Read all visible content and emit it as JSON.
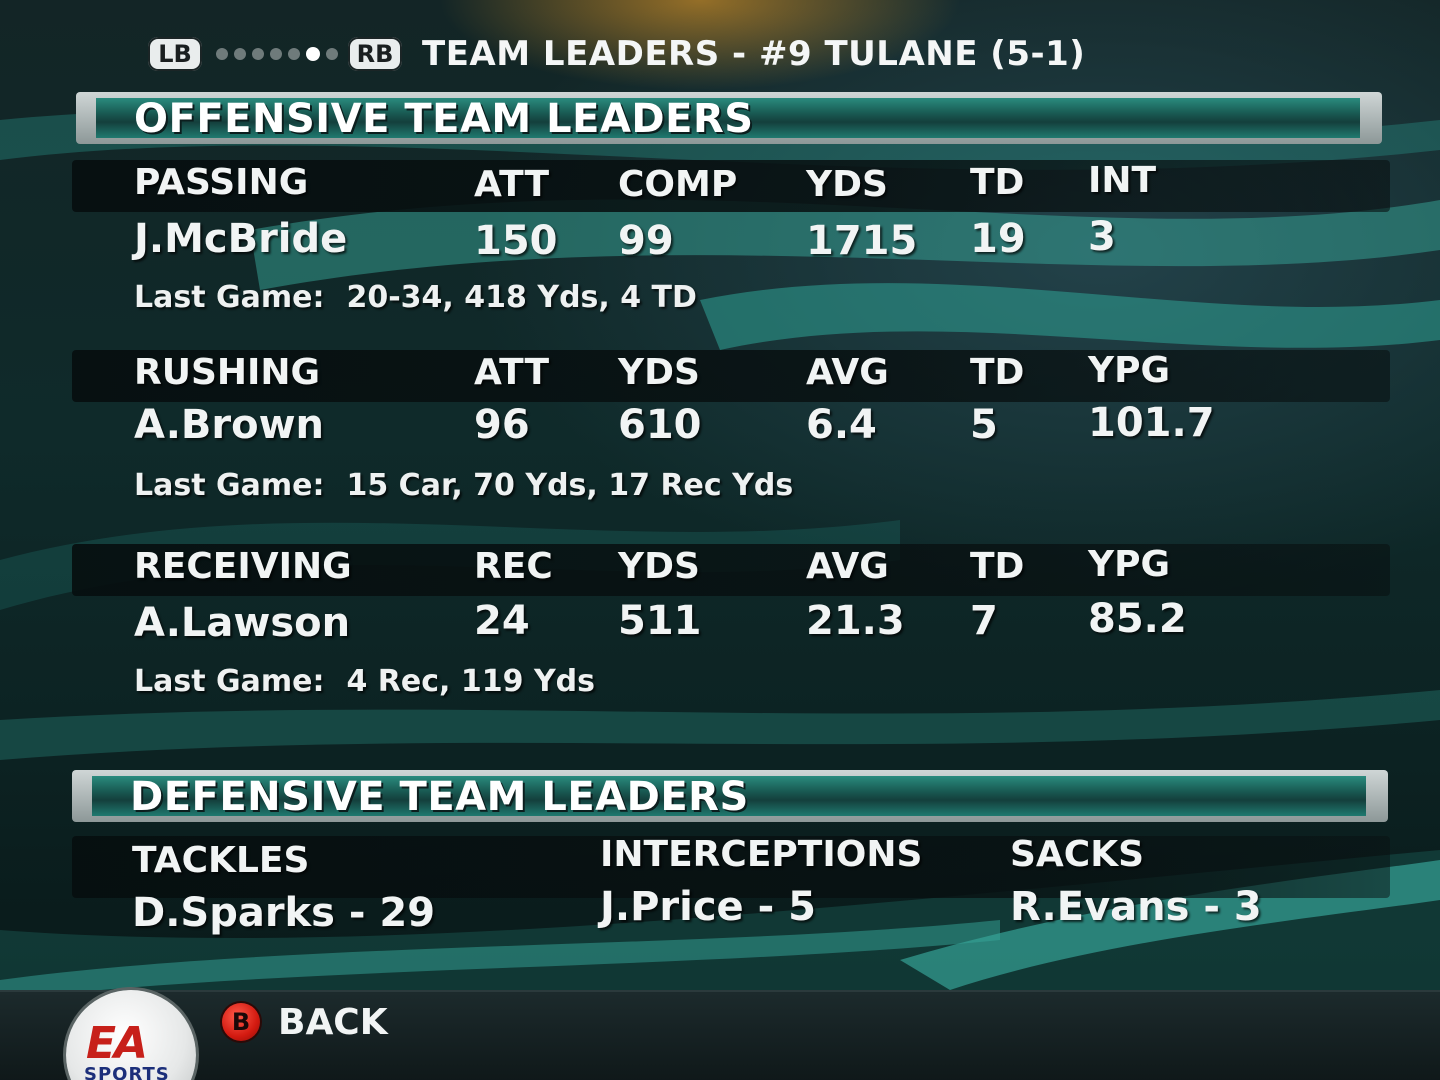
{
  "header": {
    "lb_label": "LB",
    "rb_label": "RB",
    "title": "TEAM LEADERS - #9 TULANE (5-1)",
    "page_dots_total": 7,
    "page_dot_active_index": 5
  },
  "offense": {
    "section_title": "OFFENSIVE TEAM LEADERS",
    "passing": {
      "category": "PASSING",
      "columns": [
        "ATT",
        "COMP",
        "YDS",
        "TD",
        "INT"
      ],
      "player": "J.McBride",
      "values": [
        "150",
        "99",
        "1715",
        "19",
        "3"
      ],
      "last_game_label": "Last Game:",
      "last_game": "20-34, 418 Yds, 4 TD"
    },
    "rushing": {
      "category": "RUSHING",
      "columns": [
        "ATT",
        "YDS",
        "AVG",
        "TD",
        "YPG"
      ],
      "player": "A.Brown",
      "values": [
        "96",
        "610",
        "6.4",
        "5",
        "101.7"
      ],
      "last_game_label": "Last Game:",
      "last_game": "15 Car, 70 Yds,  17 Rec Yds"
    },
    "receiving": {
      "category": "RECEIVING",
      "columns": [
        "REC",
        "YDS",
        "AVG",
        "TD",
        "YPG"
      ],
      "player": "A.Lawson",
      "values": [
        "24",
        "511",
        "21.3",
        "7",
        "85.2"
      ],
      "last_game_label": "Last Game:",
      "last_game": "4 Rec, 119 Yds"
    }
  },
  "defense": {
    "section_title": "DEFENSIVE TEAM LEADERS",
    "tackles": {
      "label": "TACKLES",
      "value": "D.Sparks - 29"
    },
    "interceptions": {
      "label": "INTERCEPTIONS",
      "value": "J.Price - 5"
    },
    "sacks": {
      "label": "SACKS",
      "value": "R.Evans - 3"
    }
  },
  "footer": {
    "b_button_glyph": "B",
    "back_label": "BACK",
    "logo_mark": "EA",
    "logo_text": "SPORTS"
  },
  "colors": {
    "accent_teal": "#1f7a70",
    "back_button_red": "#d31a10"
  }
}
